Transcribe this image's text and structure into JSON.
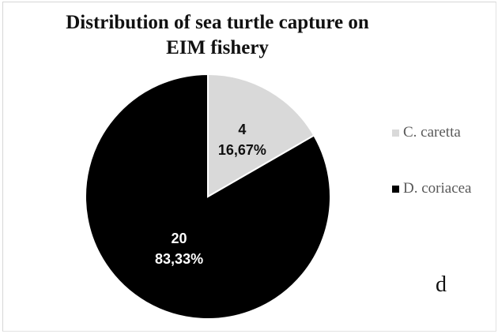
{
  "chart_data": {
    "type": "pie",
    "title_line1": "Distribution of sea turtle capture on",
    "title_line2": "EIM fishery",
    "slices": [
      {
        "name": "C. caretta",
        "value": 4,
        "percent_label": "16,67%",
        "color": "#d9d9d9",
        "label_color": "#111111"
      },
      {
        "name": "D. coriacea",
        "value": 20,
        "percent_label": "83,33%",
        "color": "#000000",
        "label_color": "#ffffff"
      }
    ],
    "legend_position": "right"
  },
  "panel_letter": "d"
}
